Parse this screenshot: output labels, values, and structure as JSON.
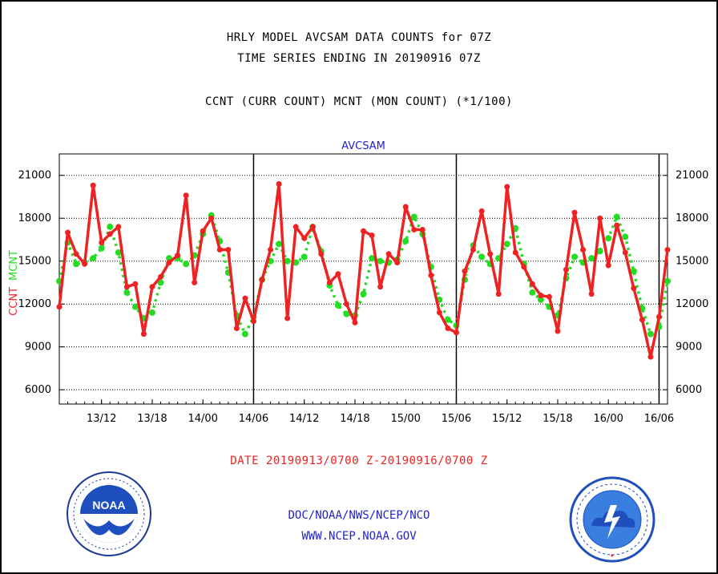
{
  "header": {
    "title_line1": "HRLY MODEL AVCSAM DATA COUNTS for 07Z",
    "title_line2": "TIME SERIES ENDING IN 20190916 07Z",
    "subtitle": "CCNT (CURR COUNT) MCNT (MON COUNT) (*1/100)"
  },
  "chart_data": {
    "type": "line",
    "title": "AVCSAM",
    "ylabel_ccnt": "CCNT",
    "ylabel_mcnt": "MCNT",
    "ylim": [
      5000,
      22500
    ],
    "y_ticks": [
      "6000",
      "9000",
      "12000",
      "15000",
      "18000",
      "21000"
    ],
    "x_tick_labels": [
      "13/12",
      "13/18",
      "14/00",
      "14/06",
      "14/12",
      "14/18",
      "15/00",
      "15/06",
      "15/12",
      "15/18",
      "16/00",
      "16/06"
    ],
    "grid": true,
    "day_separators": [
      "14/06",
      "15/06",
      "16/06"
    ],
    "colors": {
      "ccnt": "#ee2222",
      "mcnt": "#22dd22",
      "title": "#2222cc"
    },
    "series": [
      {
        "name": "CCNT",
        "values": [
          11800,
          17000,
          15500,
          14800,
          20300,
          16300,
          16900,
          17400,
          13200,
          13400,
          9900,
          13200,
          13900,
          14900,
          15400,
          19600,
          13500,
          17100,
          18000,
          15800,
          15800,
          10300,
          12400,
          10800,
          13700,
          15800,
          20400,
          11000,
          17400,
          16600,
          17400,
          15500,
          13500,
          14100,
          12000,
          10700,
          17100,
          16800,
          13200,
          15500,
          14900,
          18800,
          17200,
          17200,
          14000,
          11400,
          10300,
          10000,
          14300,
          15800,
          18500,
          15500,
          12700,
          20200,
          15600,
          14600,
          13400,
          12600,
          12500,
          10100,
          14400,
          18400,
          15800,
          12700,
          18000,
          14700,
          17500,
          15600,
          13100,
          10900,
          8300,
          11100,
          15800
        ]
      },
      {
        "name": "MCNT",
        "values": [
          13600,
          16300,
          14800,
          14900,
          15200,
          15900,
          17400,
          15600,
          12800,
          11800,
          11000,
          11400,
          13500,
          15200,
          15200,
          14800,
          15400,
          16900,
          18200,
          16400,
          14200,
          11200,
          9900,
          11100,
          13700,
          15000,
          16200,
          15000,
          14900,
          15300,
          17400,
          15700,
          13300,
          11900,
          11300,
          11200,
          12700,
          15200,
          15000,
          14900,
          15100,
          16400,
          18100,
          16900,
          14600,
          12300,
          10900,
          10500,
          13700,
          16100,
          15300,
          14800,
          15200,
          16200,
          17300,
          14800,
          12800,
          12300,
          11800,
          11200,
          13800,
          15300,
          14900,
          15200,
          15700,
          16600,
          18100,
          16700,
          14300,
          11700,
          9900,
          10400,
          13600
        ]
      }
    ]
  },
  "footer": {
    "date_range": "DATE 20190913/0700 Z-20190916/0700 Z",
    "org": "DOC/NOAA/NWS/NCEP/NCO",
    "url": "WWW.NCEP.NOAA.GOV"
  },
  "logos": {
    "noaa_text": "NOAA",
    "nws_text": "NATIONAL WEATHER SERVICE"
  }
}
